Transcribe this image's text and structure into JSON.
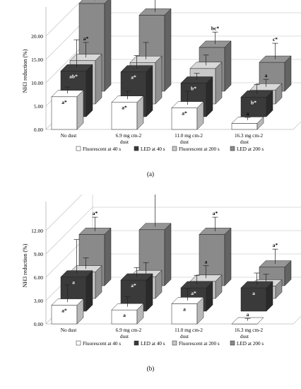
{
  "chart_data": [
    {
      "type": "bar",
      "panel_label": "(a)",
      "ylabel": "NH3 reduction (%)",
      "ylim": [
        0,
        25
      ],
      "yticks": [
        "0.00",
        "5.00",
        "10.00",
        "15.00",
        "20.00"
      ],
      "ytick_values": [
        0,
        5,
        10,
        15,
        20
      ],
      "grid": true,
      "legend_position": "bottom",
      "categories": [
        "No dust",
        "6.9 mg cm-2 dust",
        "11.0 mg cm-2 dust",
        "16.3 mg cm-2 dust"
      ],
      "series": [
        {
          "name": "Fluorescent at 40 s",
          "depth_label": "Fluorescent at 40 s",
          "color": "#ffffff",
          "values": [
            7.0,
            5.8,
            4.6,
            1.3
          ],
          "errors": [
            1.4,
            1.7,
            2.9,
            0.6
          ],
          "labels": [
            "a*",
            "a*",
            "a*",
            "a"
          ]
        },
        {
          "name": "LED at 40 s",
          "depth_label": "LED at 40 s",
          "color": "#3a3a3a",
          "values": [
            9.8,
            9.6,
            7.2,
            4.2
          ],
          "errors": [
            6.0,
            2.8,
            1.4,
            2.0
          ],
          "labels": [
            "ab*",
            "a*",
            "b*",
            "b*"
          ]
        },
        {
          "name": "Fluorescent at 200 s",
          "depth_label": "Fluorescent at 200 s",
          "color": "#c8c8c8",
          "values": [
            9.3,
            8.9,
            7.6,
            3.0
          ],
          "errors": [
            3.2,
            3.6,
            2.2,
            1.6
          ],
          "labels": [
            "a*",
            "",
            "",
            "a"
          ]
        },
        {
          "name": "LED at 200 s",
          "depth_label": "LED at 200 s",
          "color": "#8a8a8a",
          "values": [
            18.8,
            16.3,
            9.4,
            6.2
          ],
          "errors": [
            10.2,
            8.6,
            2.6,
            3.4
          ],
          "labels": [
            "a*",
            "ab*",
            "bc*",
            "c*"
          ]
        }
      ]
    },
    {
      "type": "bar",
      "panel_label": "(b)",
      "ylabel": "NH3 reduction (%)",
      "ylim": [
        0,
        15
      ],
      "yticks": [
        "0.00",
        "3.00",
        "6.00",
        "9.00",
        "12.00"
      ],
      "ytick_values": [
        0,
        3,
        6,
        9,
        12
      ],
      "grid": true,
      "legend_position": "bottom",
      "categories": [
        "No dust",
        "6.9 mg cm-2 dust",
        "11.0 mg cm-2 dust",
        "16.3 mg cm-2 dust"
      ],
      "series": [
        {
          "name": "Fluorescent at 40 s",
          "depth_label": "Fluorescent at 40 s",
          "color": "#ffffff",
          "values": [
            2.4,
            1.8,
            2.6,
            0.0
          ],
          "errors": [
            2.2,
            1.3,
            1.5,
            0.3
          ],
          "labels": [
            "a*",
            "a",
            "a",
            "a"
          ]
        },
        {
          "name": "LED at 40 s",
          "depth_label": "LED at 40 s",
          "color": "#3a3a3a",
          "values": [
            4.4,
            4.0,
            3.0,
            3.0
          ],
          "errors": [
            4.4,
            1.2,
            1.2,
            1.5
          ],
          "labels": [
            "a",
            "a*",
            "a*",
            "a"
          ]
        },
        {
          "name": "Fluorescent at 200 s",
          "depth_label": "Fluorescent at 200 s",
          "color": "#c8c8c8",
          "values": [
            3.4,
            2.8,
            2.2,
            1.6
          ],
          "errors": [
            1.4,
            1.4,
            1.6,
            1.1
          ],
          "labels": [
            "",
            "",
            "a",
            ""
          ]
        },
        {
          "name": "LED at 200 s",
          "depth_label": "LED at 200 s",
          "color": "#8a8a8a",
          "values": [
            6.6,
            7.2,
            6.6,
            2.4
          ],
          "errors": [
            1.8,
            4.2,
            1.8,
            1.9
          ],
          "labels": [
            "a*",
            "a",
            "a*",
            "a*"
          ]
        }
      ]
    }
  ]
}
